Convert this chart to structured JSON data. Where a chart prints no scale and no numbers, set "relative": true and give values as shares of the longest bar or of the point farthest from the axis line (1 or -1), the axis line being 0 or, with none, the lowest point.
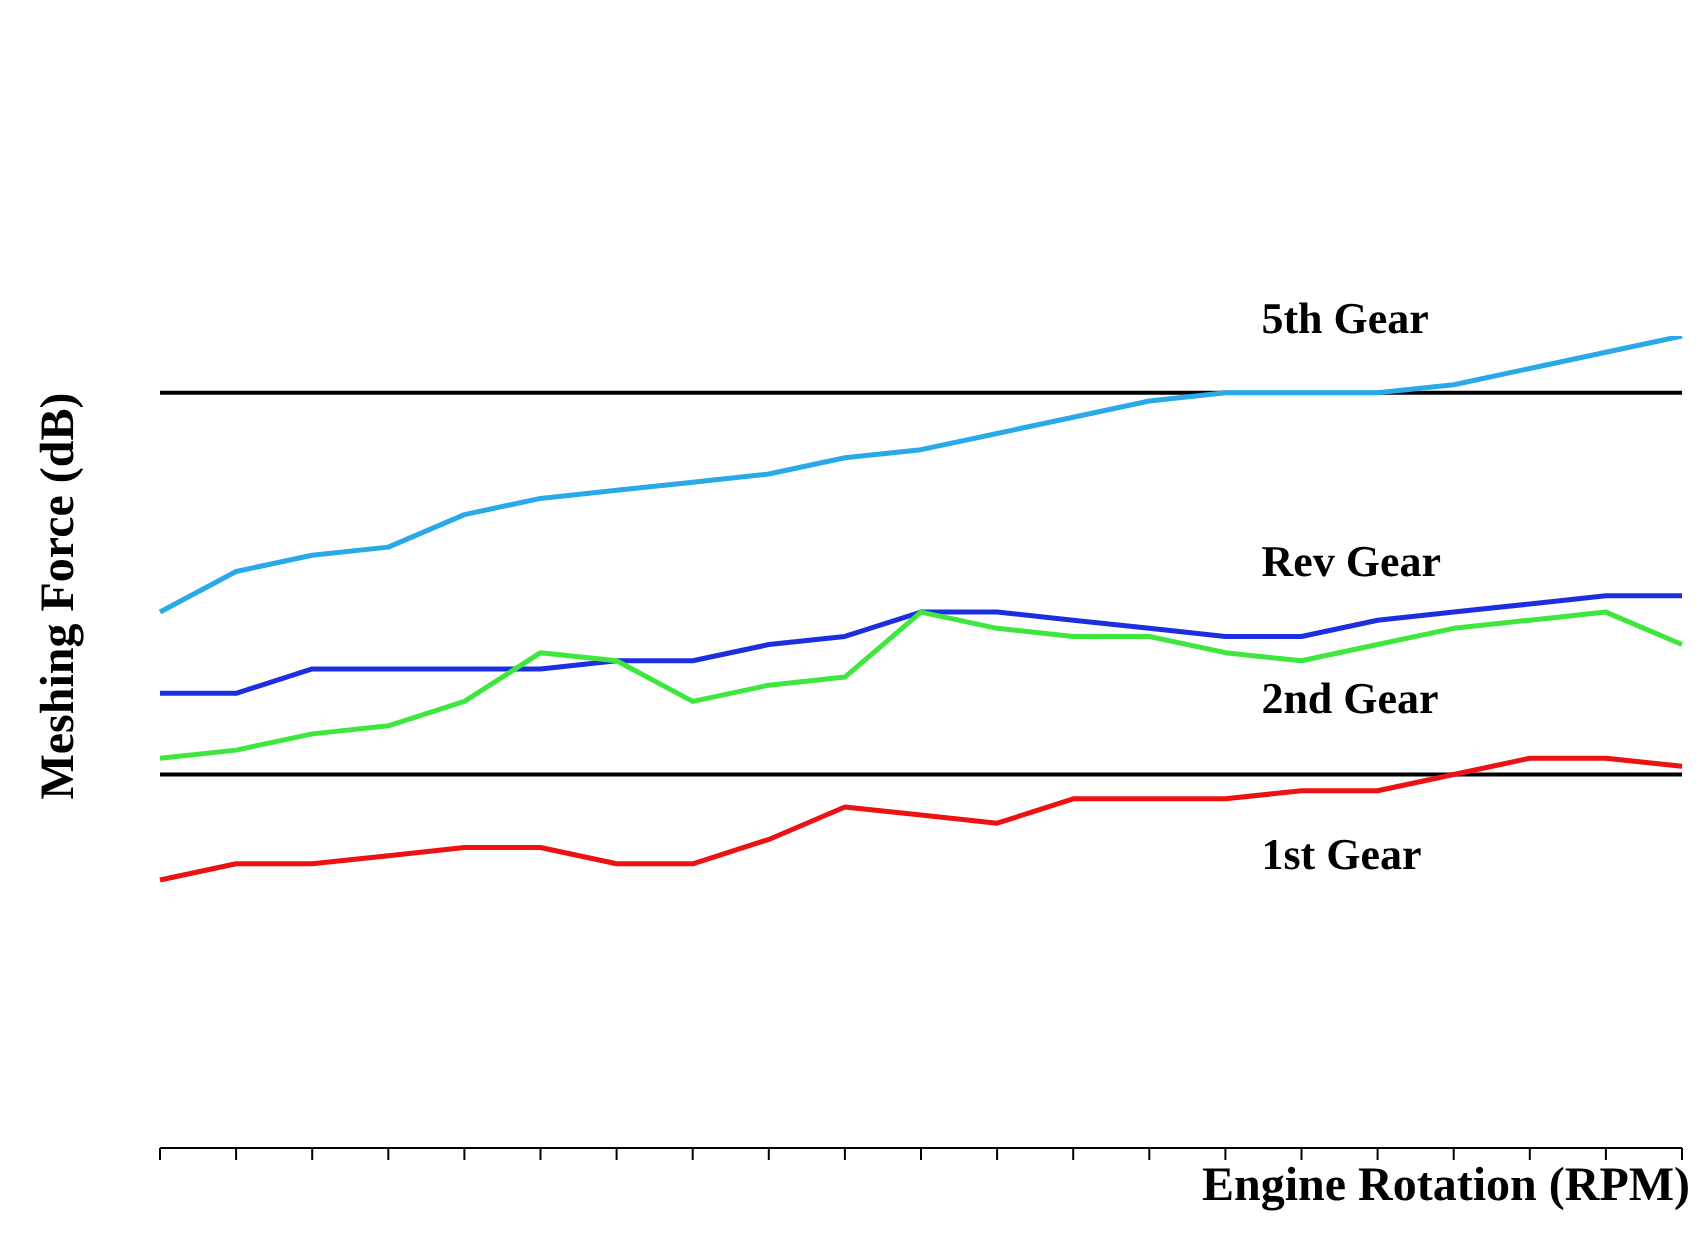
{
  "chart_data": {
    "type": "line",
    "relative": true,
    "xlabel": "Engine Rotation (RPM)",
    "ylabel": "Meshing Force (dB)",
    "categories": [
      null,
      null,
      null,
      null,
      null,
      null,
      null,
      null,
      null,
      null,
      null,
      null,
      null,
      null,
      null,
      null,
      null,
      null,
      null,
      null,
      null
    ],
    "series": [
      {
        "name": "5th Gear",
        "color": "#29a9e8",
        "values": [
          0.66,
          0.71,
          0.73,
          0.74,
          0.78,
          0.8,
          0.81,
          0.82,
          0.83,
          0.85,
          0.86,
          0.88,
          0.9,
          0.92,
          0.93,
          0.93,
          0.93,
          0.94,
          0.96,
          0.98,
          1.0
        ]
      },
      {
        "name": "Rev Gear",
        "color": "#1c2fe0",
        "values": [
          0.56,
          0.56,
          0.59,
          0.59,
          0.59,
          0.59,
          0.6,
          0.6,
          0.62,
          0.63,
          0.66,
          0.66,
          0.65,
          0.64,
          0.63,
          0.63,
          0.65,
          0.66,
          0.67,
          0.68,
          0.68
        ]
      },
      {
        "name": "2nd Gear",
        "color": "#3ee63e",
        "values": [
          0.48,
          0.49,
          0.51,
          0.52,
          0.55,
          0.61,
          0.6,
          0.55,
          0.57,
          0.58,
          0.66,
          0.64,
          0.63,
          0.63,
          0.61,
          0.6,
          0.62,
          0.64,
          0.65,
          0.66,
          0.62
        ]
      },
      {
        "name": "1st Gear",
        "color": "#ee1111",
        "values": [
          0.33,
          0.35,
          0.35,
          0.36,
          0.37,
          0.37,
          0.35,
          0.35,
          0.38,
          0.42,
          0.41,
          0.4,
          0.43,
          0.43,
          0.43,
          0.44,
          0.44,
          0.46,
          0.48,
          0.48,
          0.47
        ]
      }
    ],
    "ref_lines": [
      {
        "axis": "y",
        "value": 0.93,
        "color": "#000000"
      },
      {
        "axis": "y",
        "value": 0.46,
        "color": "#000000"
      }
    ],
    "marker": "none",
    "line_style": "solid"
  }
}
